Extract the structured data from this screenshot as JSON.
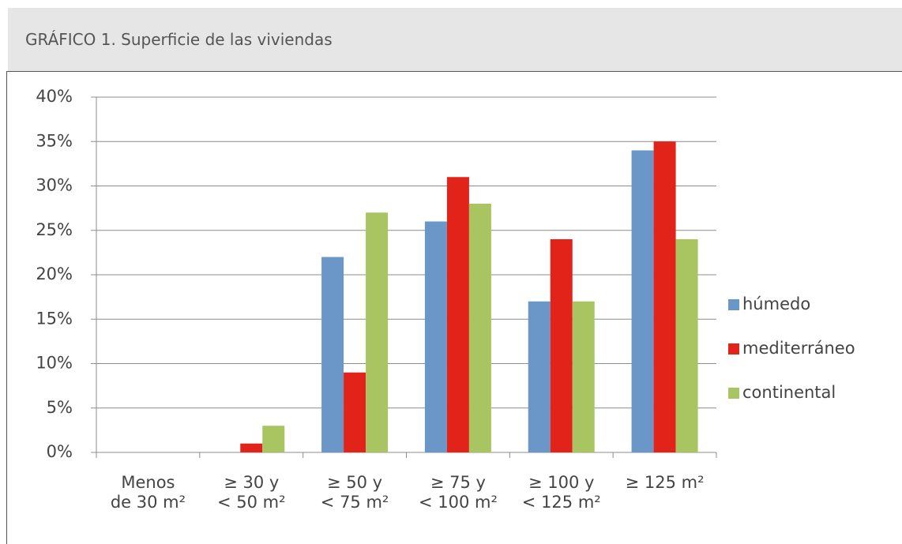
{
  "header": {
    "title": "GRÁFICO 1. Superficie de las viviendas"
  },
  "chart_data": {
    "type": "bar",
    "categories": [
      [
        "Menos",
        "de 30 m²"
      ],
      [
        "≥ 30 y",
        "< 50 m²"
      ],
      [
        "≥ 50 y",
        "< 75 m²"
      ],
      [
        "≥ 75 y",
        "< 100 m²"
      ],
      [
        "≥ 100 y",
        "< 125 m²"
      ],
      [
        "≥ 125 m²"
      ]
    ],
    "series": [
      {
        "name": "húmedo",
        "color": "#6a96c8",
        "values": [
          0,
          0,
          22,
          26,
          17,
          34
        ]
      },
      {
        "name": "mediterráneo",
        "color": "#e2231a",
        "values": [
          0,
          1,
          9,
          31,
          24,
          35
        ]
      },
      {
        "name": "continental",
        "color": "#a9c562",
        "values": [
          0,
          3,
          27,
          28,
          17,
          24
        ]
      }
    ],
    "ylim": [
      0,
      40
    ],
    "yticks": [
      {
        "value": 0,
        "label": "0%"
      },
      {
        "value": 5,
        "label": "5%"
      },
      {
        "value": 10,
        "label": "10%"
      },
      {
        "value": 15,
        "label": "15%"
      },
      {
        "value": 20,
        "label": "20%"
      },
      {
        "value": 25,
        "label": "25%"
      },
      {
        "value": 30,
        "label": "30%"
      },
      {
        "value": 35,
        "label": "35%"
      },
      {
        "value": 40,
        "label": "40%"
      }
    ],
    "grid": true,
    "legend": "right"
  }
}
